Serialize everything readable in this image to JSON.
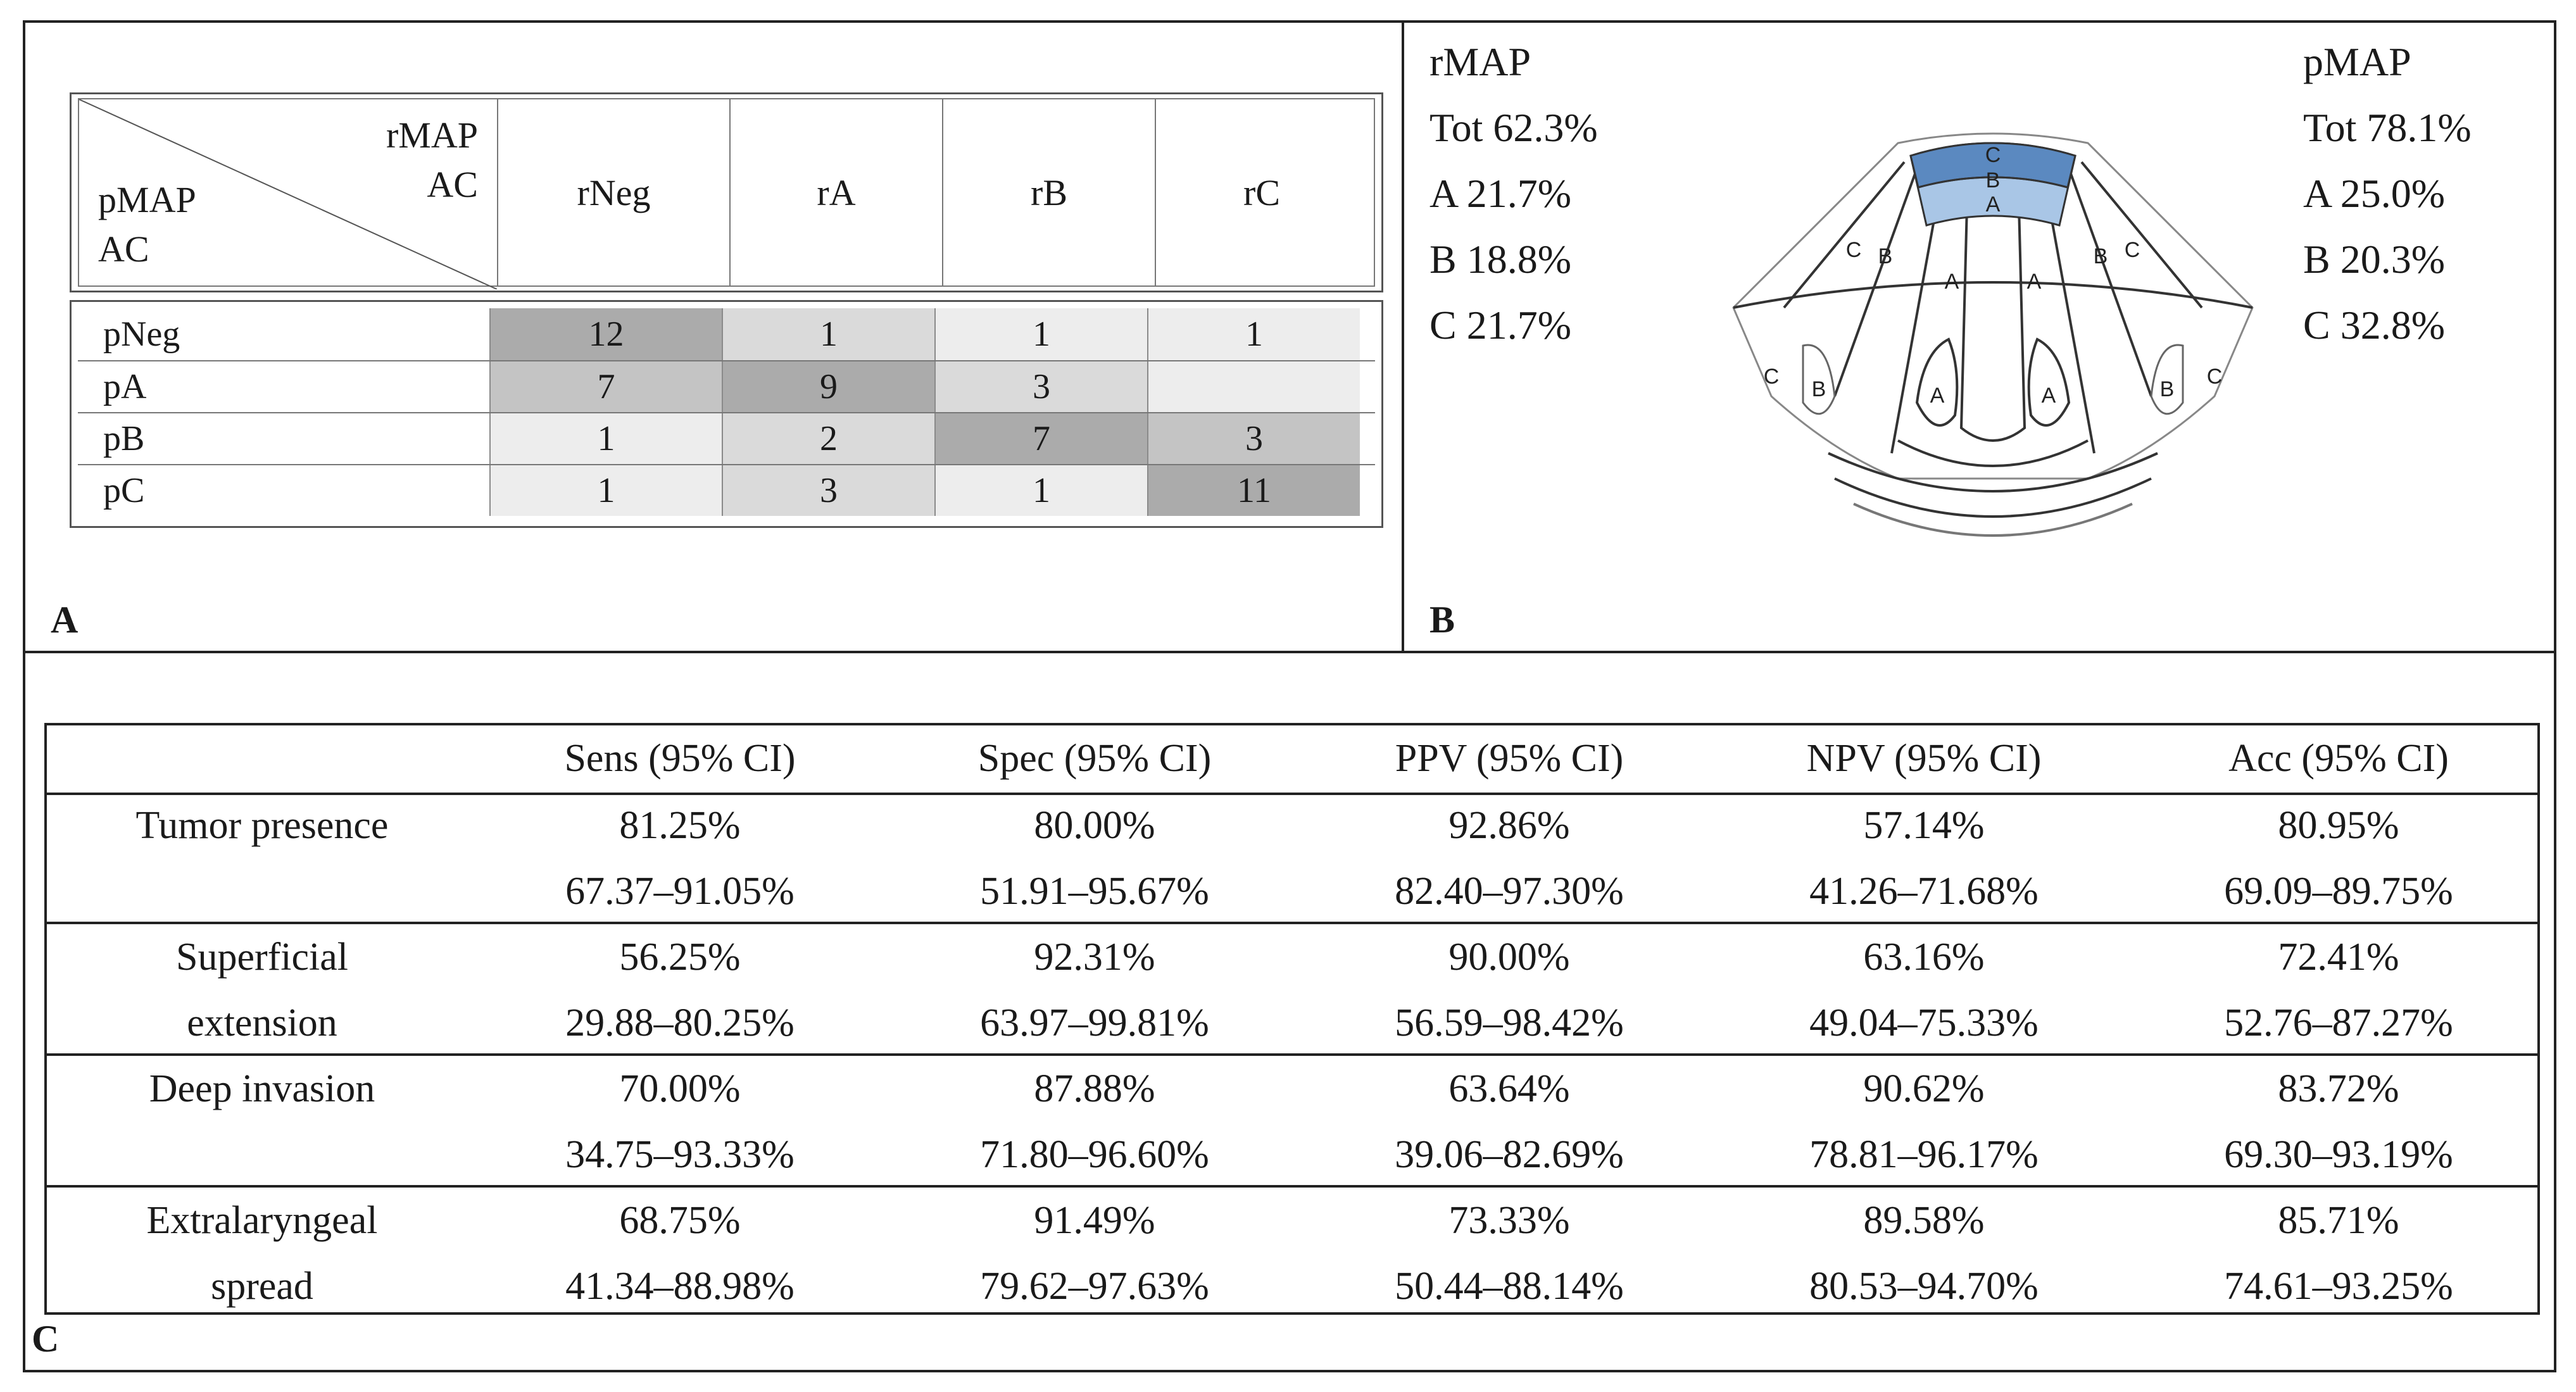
{
  "panel_a": {
    "letter": "A",
    "corner_top": [
      "rMAP",
      "AC"
    ],
    "corner_bottom": [
      "pMAP",
      "AC"
    ],
    "columns": [
      "rNeg",
      "rA",
      "rB",
      "rC"
    ],
    "rows": [
      {
        "label": "pNeg",
        "cells": [
          "12",
          "1",
          "1",
          "1"
        ],
        "shade": [
          3,
          1,
          0,
          0
        ]
      },
      {
        "label": "pA",
        "cells": [
          "7",
          "9",
          "3",
          ""
        ],
        "shade": [
          2,
          3,
          1,
          0
        ]
      },
      {
        "label": "pB",
        "cells": [
          "1",
          "2",
          "7",
          "3"
        ],
        "shade": [
          0,
          1,
          3,
          2
        ]
      },
      {
        "label": "pC",
        "cells": [
          "1",
          "3",
          "1",
          "11"
        ],
        "shade": [
          0,
          1,
          0,
          3
        ]
      }
    ]
  },
  "panel_b": {
    "letter": "B",
    "rmap": [
      "rMAP",
      "Tot 62.3%",
      "A 21.7%",
      "B 18.8%",
      "C 21.7%"
    ],
    "pmap": [
      "pMAP",
      "Tot 78.1%",
      "A 25.0%",
      "B 20.3%",
      "C 32.8%"
    ],
    "diagram_labels": {
      "a": "A",
      "b": "B",
      "c": "C"
    },
    "colors": {
      "highlight_dark": "#5b89c0",
      "highlight_light": "#a9c6e6"
    }
  },
  "panel_c": {
    "letter": "C",
    "headers": [
      "",
      "Sens (95% CI)",
      "Spec (95% CI)",
      "PPV (95% CI)",
      "NPV (95% CI)",
      "Acc (95% CI)"
    ],
    "rows": [
      {
        "label": [
          "Tumor presence"
        ],
        "values": [
          "81.25%",
          "80.00%",
          "92.86%",
          "57.14%",
          "80.95%"
        ],
        "ci": [
          "67.37–91.05%",
          "51.91–95.67%",
          "82.40–97.30%",
          "41.26–71.68%",
          "69.09–89.75%"
        ]
      },
      {
        "label": [
          "Superficial",
          "extension"
        ],
        "values": [
          "56.25%",
          "92.31%",
          "90.00%",
          "63.16%",
          "72.41%"
        ],
        "ci": [
          "29.88–80.25%",
          "63.97–99.81%",
          "56.59–98.42%",
          "49.04–75.33%",
          "52.76–87.27%"
        ]
      },
      {
        "label": [
          "Deep invasion"
        ],
        "values": [
          "70.00%",
          "87.88%",
          "63.64%",
          "90.62%",
          "83.72%"
        ],
        "ci": [
          "34.75–93.33%",
          "71.80–96.60%",
          "39.06–82.69%",
          "78.81–96.17%",
          "69.30–93.19%"
        ]
      },
      {
        "label": [
          "Extralaryngeal",
          "spread"
        ],
        "values": [
          "68.75%",
          "91.49%",
          "73.33%",
          "89.58%",
          "85.71%"
        ],
        "ci": [
          "41.34–88.98%",
          "79.62–97.63%",
          "50.44–88.14%",
          "80.53–94.70%",
          "74.61–93.25%"
        ]
      }
    ]
  }
}
